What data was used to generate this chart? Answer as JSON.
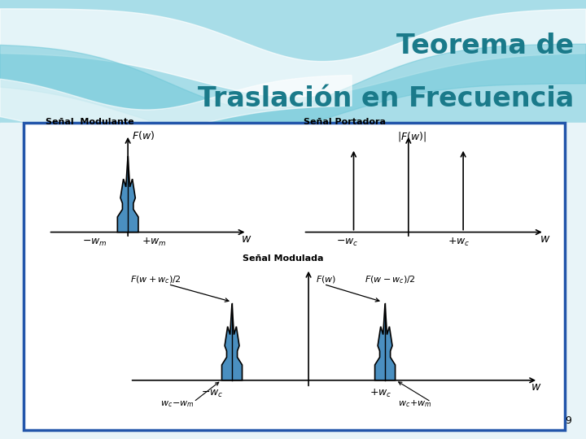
{
  "title_line1": "Teorema de",
  "title_line2": "Traslación en Frecuencia",
  "title_color": "#1a7a8a",
  "title_fontsize": 24,
  "border_color": "#2255aa",
  "label_senal_modulante": "Señal  Modulante",
  "label_senal_portadora": "Señal Portadora",
  "label_senal_modulada": "Señal Modulada",
  "fill_color": "#4a8fc0",
  "fill_edge_color": "#000000",
  "page_number": "9",
  "bg_top_color": "#a8dde8",
  "bg_bottom_color": "#e8f4f8",
  "wave1_color": "#ffffff",
  "wave2_color": "#70c8d8"
}
